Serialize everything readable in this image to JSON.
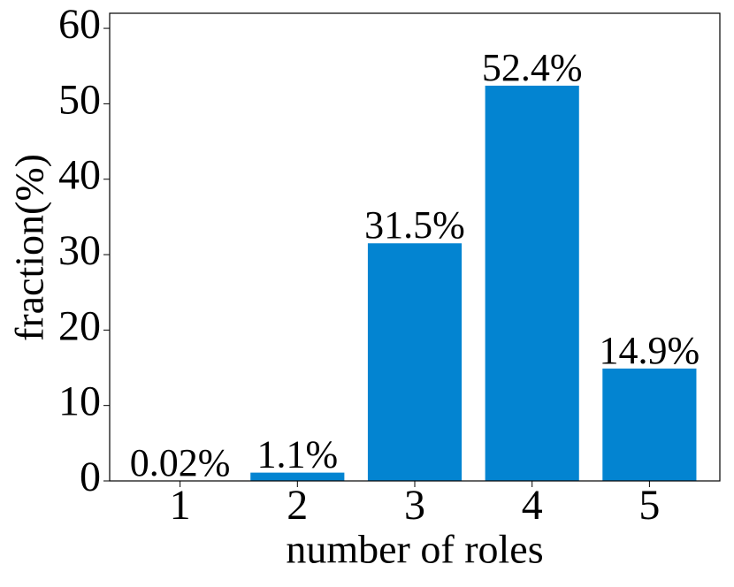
{
  "chart_data": {
    "type": "bar",
    "x_label": "number of roles",
    "y_label": "fraction(%)",
    "categories": [
      "1",
      "2",
      "3",
      "4",
      "5"
    ],
    "values": [
      0.02,
      1.1,
      31.5,
      52.4,
      14.9
    ],
    "value_labels": [
      "0.02%",
      "1.1%",
      "31.5%",
      "52.4%",
      "14.9%"
    ],
    "color": "#0384d1",
    "ylim": [
      0,
      62
    ],
    "yticks": [
      0,
      10,
      20,
      30,
      40,
      50,
      60
    ],
    "grid": false
  }
}
